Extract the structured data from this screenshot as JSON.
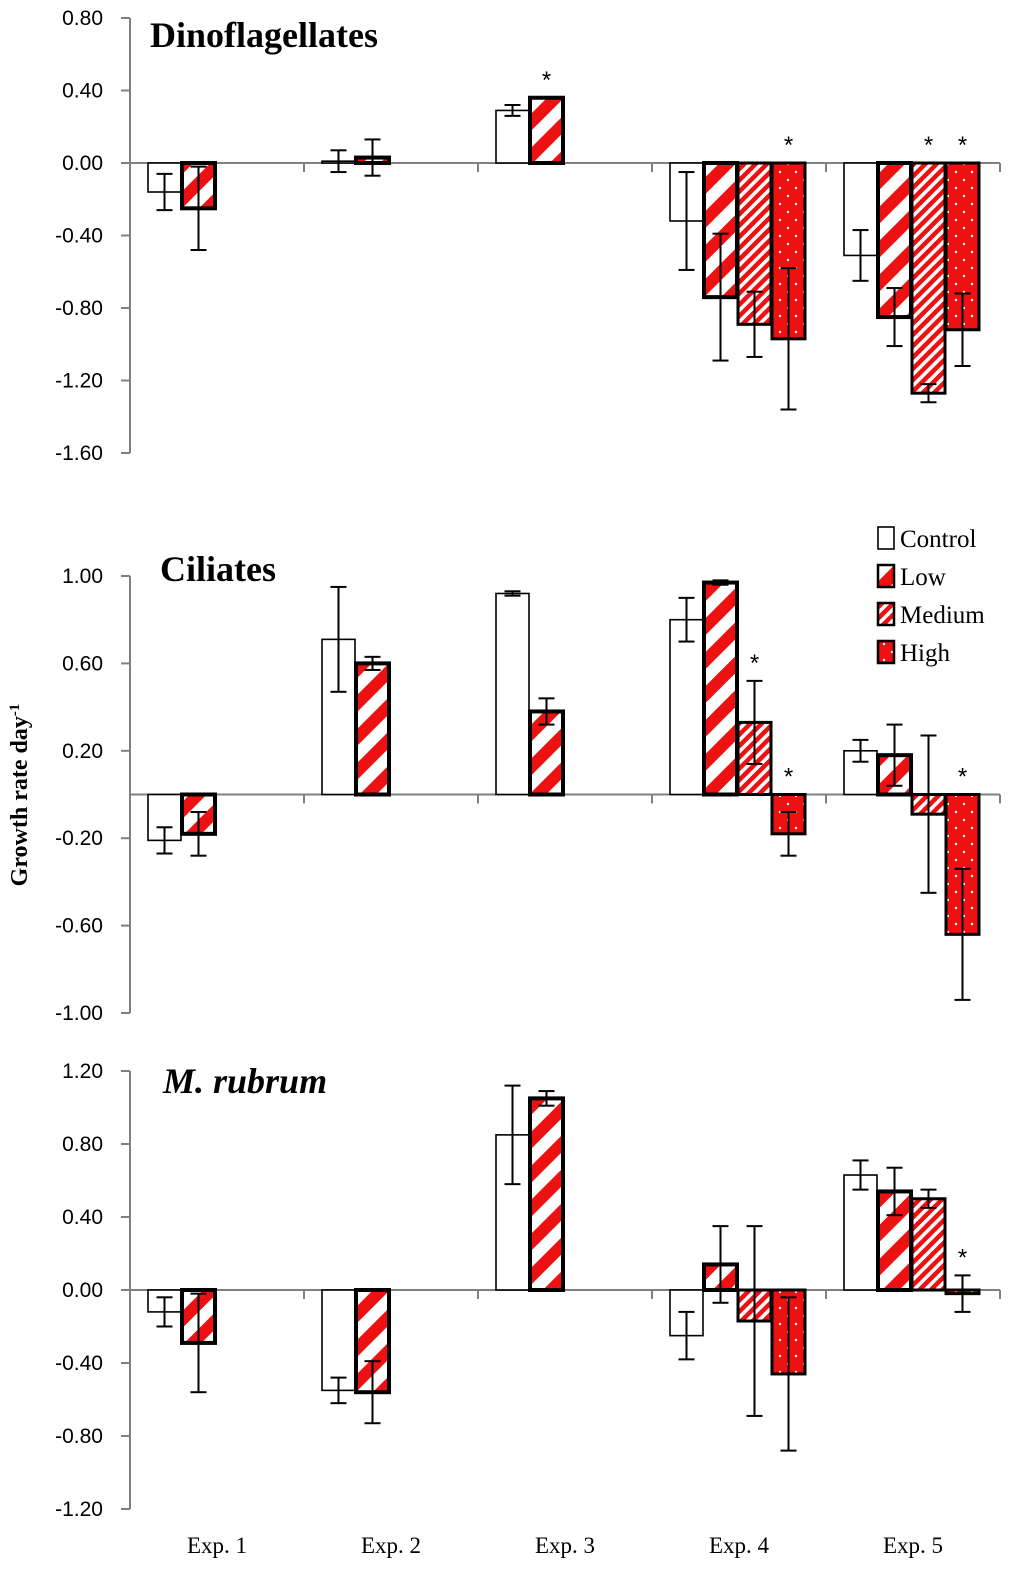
{
  "chart_data": [
    {
      "type": "bar",
      "title": "Dinoflagellates",
      "title_italic": false,
      "categories": [
        "Exp. 1",
        "Exp. 2",
        "Exp. 3",
        "Exp. 4",
        "Exp. 5"
      ],
      "ylim": [
        -1.6,
        0.8
      ],
      "yticks": [
        0.8,
        0.4,
        0.0,
        -0.4,
        -0.8,
        -1.2,
        -1.6
      ],
      "ytick_labels": [
        "0.80",
        "0.40",
        "0.00",
        "-0.40",
        "-0.80",
        "-1.20",
        "-1.60"
      ],
      "series": [
        {
          "name": "Control",
          "values": [
            -0.16,
            0.01,
            0.29,
            -0.32,
            -0.51
          ],
          "errors": [
            0.1,
            0.06,
            0.03,
            0.27,
            0.14
          ],
          "significant": [
            false,
            false,
            false,
            false,
            false
          ]
        },
        {
          "name": "Low",
          "values": [
            -0.25,
            0.03,
            0.36,
            -0.74,
            -0.85
          ],
          "errors": [
            0.23,
            0.1,
            0.0,
            0.35,
            0.16
          ],
          "significant": [
            false,
            false,
            true,
            false,
            false
          ]
        },
        {
          "name": "Medium",
          "values": [
            null,
            null,
            null,
            -0.89,
            -1.27
          ],
          "errors": [
            null,
            null,
            null,
            0.18,
            0.05
          ],
          "significant": [
            false,
            false,
            false,
            false,
            true
          ]
        },
        {
          "name": "High",
          "values": [
            null,
            null,
            null,
            -0.97,
            -0.92
          ],
          "errors": [
            null,
            null,
            null,
            0.39,
            0.2
          ],
          "significant": [
            false,
            false,
            false,
            true,
            true
          ]
        }
      ]
    },
    {
      "type": "bar",
      "title": "Ciliates",
      "title_italic": false,
      "categories": [
        "Exp. 1",
        "Exp. 2",
        "Exp. 3",
        "Exp. 4",
        "Exp. 5"
      ],
      "ylim": [
        -1.0,
        1.0
      ],
      "yticks": [
        1.0,
        0.6,
        0.2,
        -0.2,
        -0.6,
        -1.0
      ],
      "ytick_labels": [
        "1.00",
        "0.60",
        "0.20",
        "-0.20",
        "-0.60",
        "-1.00"
      ],
      "series": [
        {
          "name": "Control",
          "values": [
            -0.21,
            0.71,
            0.92,
            0.8,
            0.2
          ],
          "errors": [
            0.06,
            0.24,
            0.01,
            0.1,
            0.05
          ],
          "significant": [
            false,
            false,
            false,
            false,
            false
          ]
        },
        {
          "name": "Low",
          "values": [
            -0.18,
            0.6,
            0.38,
            0.97,
            0.18
          ],
          "errors": [
            0.1,
            0.03,
            0.06,
            0.01,
            0.14
          ],
          "significant": [
            false,
            false,
            false,
            false,
            false
          ]
        },
        {
          "name": "Medium",
          "values": [
            null,
            null,
            null,
            0.33,
            -0.09
          ],
          "errors": [
            null,
            null,
            null,
            0.19,
            0.36
          ],
          "significant": [
            false,
            false,
            false,
            true,
            false
          ]
        },
        {
          "name": "High",
          "values": [
            null,
            null,
            null,
            -0.18,
            -0.64
          ],
          "errors": [
            null,
            null,
            null,
            0.1,
            0.3
          ],
          "significant": [
            false,
            false,
            false,
            true,
            true
          ]
        }
      ]
    },
    {
      "type": "bar",
      "title": "M. rubrum",
      "title_italic": true,
      "categories": [
        "Exp. 1",
        "Exp. 2",
        "Exp. 3",
        "Exp. 4",
        "Exp. 5"
      ],
      "ylim": [
        -1.2,
        1.2
      ],
      "yticks": [
        1.2,
        0.8,
        0.4,
        0.0,
        -0.4,
        -0.8,
        -1.2
      ],
      "ytick_labels": [
        "1.20",
        "0.80",
        "0.40",
        "0.00",
        "-0.40",
        "-0.80",
        "-1.20"
      ],
      "series": [
        {
          "name": "Control",
          "values": [
            -0.12,
            -0.55,
            0.85,
            -0.25,
            0.63
          ],
          "errors": [
            0.08,
            0.07,
            0.27,
            0.13,
            0.08
          ],
          "significant": [
            false,
            false,
            false,
            false,
            false
          ]
        },
        {
          "name": "Low",
          "values": [
            -0.29,
            -0.56,
            1.05,
            0.14,
            0.54
          ],
          "errors": [
            0.27,
            0.17,
            0.04,
            0.21,
            0.13
          ],
          "significant": [
            false,
            false,
            false,
            false,
            false
          ]
        },
        {
          "name": "Medium",
          "values": [
            null,
            null,
            null,
            -0.17,
            0.5
          ],
          "errors": [
            null,
            null,
            null,
            0.52,
            0.05
          ],
          "significant": [
            false,
            false,
            false,
            false,
            false
          ]
        },
        {
          "name": "High",
          "values": [
            null,
            null,
            null,
            -0.46,
            -0.02
          ],
          "errors": [
            null,
            null,
            null,
            0.42,
            0.1
          ],
          "significant": [
            false,
            false,
            false,
            false,
            true
          ]
        }
      ]
    }
  ],
  "y_axis_title": "Growth rate day",
  "y_axis_title_superscript": "-1",
  "significance_marker": "*",
  "legend": [
    {
      "name": "Control",
      "pattern": "empty"
    },
    {
      "name": "Low",
      "pattern": "wide-stripes"
    },
    {
      "name": "Medium",
      "pattern": "narrow-stripes"
    },
    {
      "name": "High",
      "pattern": "dotted-red"
    }
  ],
  "colors": {
    "red": "#ee1111",
    "outline": "#000000",
    "axis": "#808080",
    "background": "#ffffff"
  }
}
